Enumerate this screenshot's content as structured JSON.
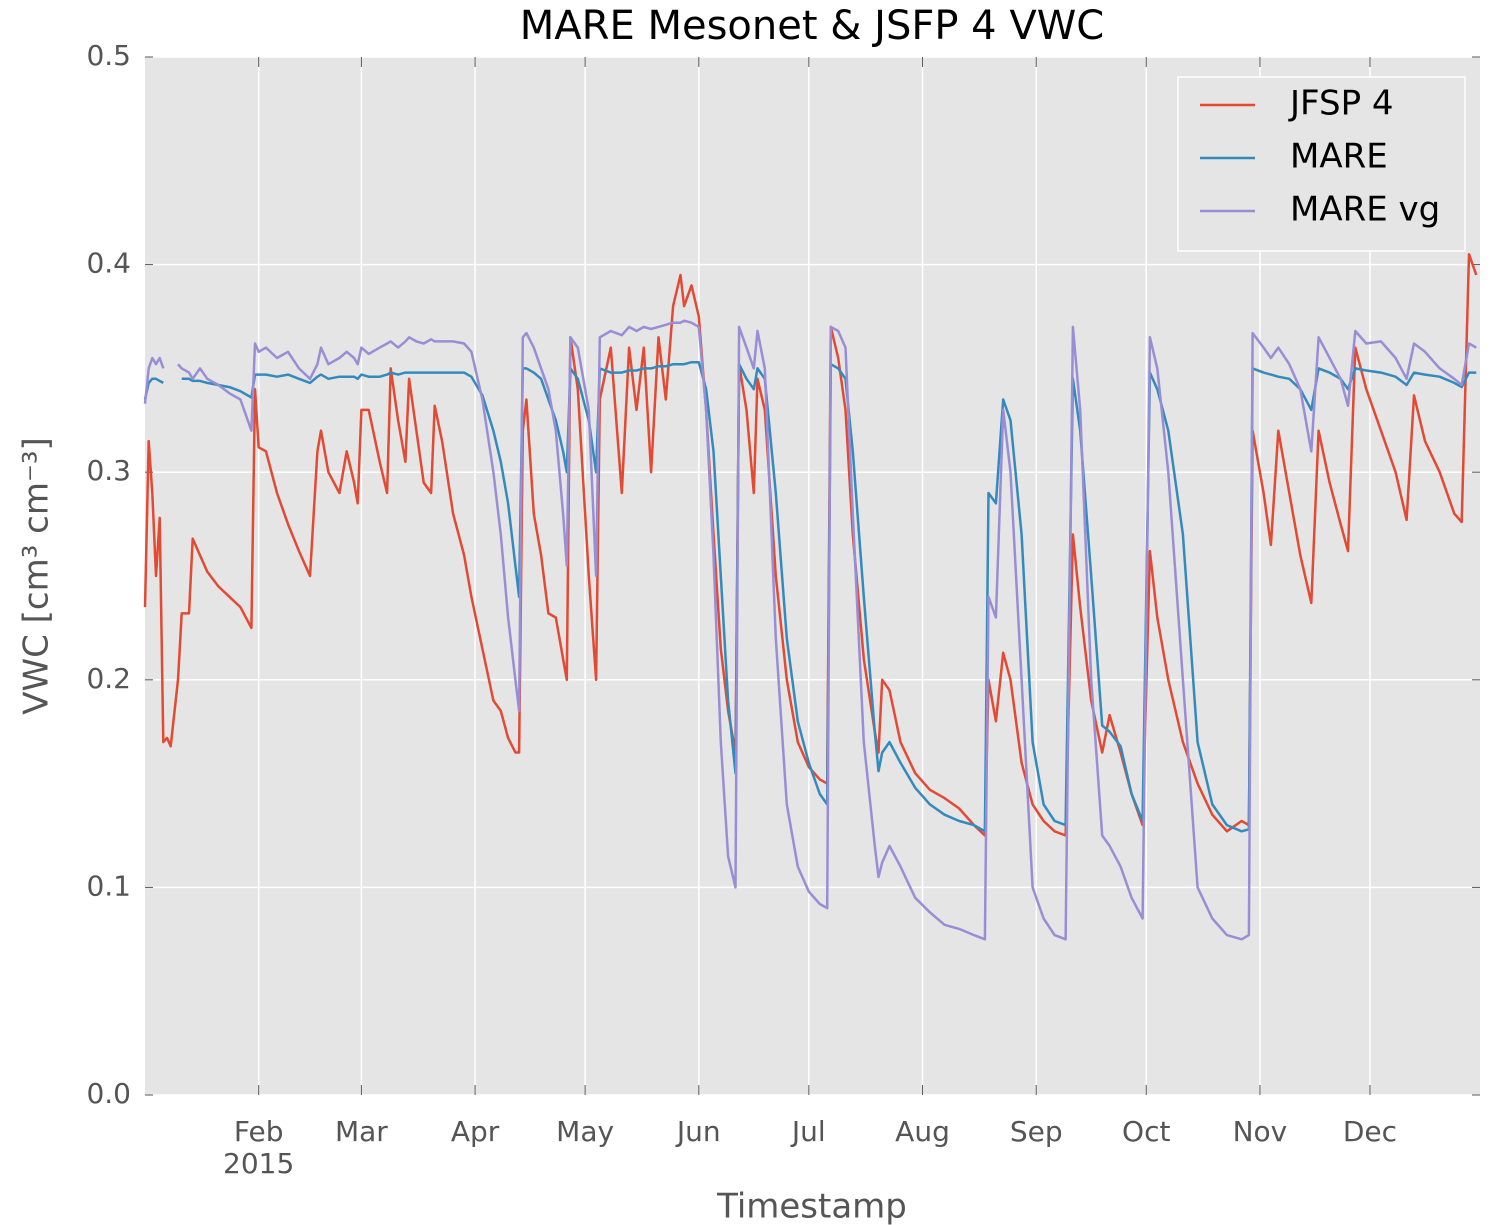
{
  "chart_data": {
    "type": "line",
    "title": "MARE Mesonet & JSFP 4 VWC",
    "x_label": "Timestamp",
    "y_label": "VWC [cm³ cm⁻³]",
    "year_label": "2015",
    "xlim": [
      1,
      365
    ],
    "xticks": [
      {
        "value": 32,
        "label": "Feb"
      },
      {
        "value": 60,
        "label": "Mar"
      },
      {
        "value": 91,
        "label": "Apr"
      },
      {
        "value": 121,
        "label": "May"
      },
      {
        "value": 152,
        "label": "Jun"
      },
      {
        "value": 182,
        "label": "Jul"
      },
      {
        "value": 213,
        "label": "Aug"
      },
      {
        "value": 244,
        "label": "Sep"
      },
      {
        "value": 274,
        "label": "Oct"
      },
      {
        "value": 305,
        "label": "Nov"
      },
      {
        "value": 335,
        "label": "Dec"
      }
    ],
    "ylim": [
      0,
      0.5
    ],
    "yticks": [
      {
        "value": 0,
        "label": "0.0"
      },
      0.1,
      0.2,
      0.3,
      0.4,
      0.5
    ],
    "grid": true,
    "legend": "upper right",
    "x": [
      1,
      2,
      3,
      4,
      5,
      6,
      7,
      8,
      10,
      11,
      13,
      14,
      16,
      18,
      21,
      24,
      27,
      30,
      31,
      32,
      34,
      37,
      40,
      43,
      46,
      48,
      49,
      51,
      54,
      56,
      58,
      59,
      60,
      62,
      65,
      67,
      68,
      70,
      72,
      73,
      75,
      77,
      79,
      80,
      82,
      85,
      88,
      90,
      93,
      96,
      98,
      100,
      102,
      103,
      104,
      105,
      107,
      109,
      111,
      113,
      115,
      116,
      117,
      119,
      122,
      124,
      125,
      128,
      131,
      133,
      135,
      137,
      139,
      141,
      143,
      145,
      147,
      148,
      150,
      152,
      154,
      156,
      158,
      160,
      162,
      163,
      165,
      167,
      168,
      170,
      173,
      176,
      179,
      182,
      185,
      187,
      188,
      190,
      192,
      194,
      197,
      200,
      201,
      202,
      204,
      207,
      211,
      215,
      219,
      223,
      227,
      230,
      231,
      233,
      235,
      237,
      240,
      243,
      246,
      249,
      252,
      254,
      256,
      259,
      262,
      264,
      267,
      270,
      273,
      275,
      277,
      280,
      284,
      288,
      292,
      296,
      300,
      302,
      303,
      306,
      308,
      310,
      313,
      316,
      319,
      321,
      324,
      327,
      329,
      331,
      334,
      338,
      342,
      345,
      347,
      350,
      354,
      358,
      360,
      362,
      364
    ],
    "series": [
      {
        "name": "JFSP 4",
        "color": "#e24a33",
        "values": [
          0.235,
          0.315,
          0.29,
          0.25,
          0.278,
          0.17,
          0.172,
          0.168,
          0.2,
          0.232,
          0.232,
          0.268,
          0.26,
          0.252,
          0.245,
          0.24,
          0.235,
          0.225,
          0.34,
          0.312,
          0.31,
          0.29,
          0.275,
          0.262,
          0.25,
          0.31,
          0.32,
          0.3,
          0.29,
          0.31,
          0.295,
          0.285,
          0.33,
          0.33,
          0.305,
          0.29,
          0.35,
          0.325,
          0.305,
          0.345,
          0.32,
          0.295,
          0.29,
          0.332,
          0.315,
          0.28,
          0.26,
          0.24,
          0.215,
          0.19,
          0.185,
          0.172,
          0.165,
          0.165,
          0.32,
          0.335,
          0.28,
          0.26,
          0.232,
          0.23,
          0.21,
          0.2,
          0.365,
          0.34,
          0.25,
          0.2,
          0.335,
          0.36,
          0.29,
          0.36,
          0.33,
          0.36,
          0.3,
          0.365,
          0.335,
          0.38,
          0.395,
          0.38,
          0.39,
          0.375,
          0.33,
          0.27,
          0.215,
          0.185,
          0.165,
          0.352,
          0.33,
          0.29,
          0.345,
          0.33,
          0.25,
          0.2,
          0.17,
          0.158,
          0.152,
          0.15,
          0.37,
          0.355,
          0.33,
          0.27,
          0.21,
          0.175,
          0.165,
          0.2,
          0.195,
          0.17,
          0.155,
          0.147,
          0.143,
          0.138,
          0.13,
          0.125,
          0.2,
          0.18,
          0.213,
          0.2,
          0.16,
          0.14,
          0.132,
          0.127,
          0.125,
          0.27,
          0.235,
          0.19,
          0.165,
          0.183,
          0.165,
          0.145,
          0.13,
          0.262,
          0.23,
          0.2,
          0.17,
          0.15,
          0.135,
          0.127,
          0.132,
          0.13,
          0.32,
          0.29,
          0.265,
          0.32,
          0.29,
          0.26,
          0.237,
          0.32,
          0.295,
          0.275,
          0.262,
          0.36,
          0.34,
          0.32,
          0.3,
          0.277,
          0.337,
          0.315,
          0.3,
          0.28,
          0.276,
          0.405,
          0.395
        ]
      },
      {
        "name": "MARE",
        "color": "#348abd",
        "values": [
          0.335,
          0.343,
          0.345,
          0.345,
          0.344,
          0.343,
          null,
          null,
          null,
          0.345,
          0.345,
          0.344,
          0.344,
          0.343,
          0.342,
          0.341,
          0.339,
          0.336,
          0.347,
          0.347,
          0.347,
          0.346,
          0.347,
          0.345,
          0.343,
          0.346,
          0.347,
          0.345,
          0.346,
          0.346,
          0.346,
          0.345,
          0.347,
          0.346,
          0.346,
          0.347,
          0.348,
          0.347,
          0.348,
          0.348,
          0.348,
          0.348,
          0.348,
          0.348,
          0.348,
          0.348,
          0.348,
          0.346,
          0.337,
          0.32,
          0.305,
          0.285,
          0.255,
          0.24,
          0.35,
          0.35,
          0.348,
          0.345,
          0.335,
          0.325,
          0.31,
          0.3,
          0.35,
          0.345,
          0.325,
          0.3,
          0.35,
          0.348,
          0.348,
          0.349,
          0.349,
          0.35,
          0.35,
          0.351,
          0.351,
          0.352,
          0.352,
          0.352,
          0.353,
          0.353,
          0.34,
          0.31,
          0.25,
          0.19,
          0.155,
          0.352,
          0.345,
          0.34,
          0.35,
          0.345,
          0.29,
          0.22,
          0.18,
          0.16,
          0.145,
          0.14,
          0.352,
          0.35,
          0.345,
          0.31,
          0.24,
          0.175,
          0.156,
          0.165,
          0.17,
          0.16,
          0.148,
          0.14,
          0.135,
          0.132,
          0.13,
          0.127,
          0.29,
          0.285,
          0.335,
          0.325,
          0.27,
          0.17,
          0.14,
          0.132,
          0.13,
          0.345,
          0.32,
          0.25,
          0.178,
          0.175,
          0.168,
          0.145,
          0.132,
          0.348,
          0.34,
          0.32,
          0.27,
          0.17,
          0.14,
          0.13,
          0.127,
          0.128,
          0.35,
          0.348,
          0.347,
          0.346,
          0.345,
          0.34,
          0.33,
          0.35,
          0.348,
          0.345,
          0.34,
          0.35,
          0.349,
          0.348,
          0.346,
          0.342,
          0.348,
          0.347,
          0.346,
          0.343,
          0.341,
          0.348,
          0.348
        ]
      },
      {
        "name": "MARE vg",
        "color": "#988ed5",
        "values": [
          0.333,
          0.35,
          0.355,
          0.352,
          0.355,
          0.35,
          null,
          null,
          0.352,
          0.35,
          0.348,
          0.345,
          0.35,
          0.345,
          0.342,
          0.338,
          0.335,
          0.32,
          0.362,
          0.358,
          0.36,
          0.355,
          0.358,
          0.35,
          0.345,
          0.352,
          0.36,
          0.352,
          0.355,
          0.358,
          0.355,
          0.352,
          0.36,
          0.357,
          0.36,
          0.362,
          0.363,
          0.36,
          0.363,
          0.365,
          0.363,
          0.362,
          0.364,
          0.363,
          0.363,
          0.363,
          0.362,
          0.358,
          0.335,
          0.3,
          0.27,
          0.23,
          0.2,
          0.185,
          0.365,
          0.367,
          0.36,
          0.35,
          0.34,
          0.32,
          0.28,
          0.255,
          0.365,
          0.36,
          0.33,
          0.25,
          0.365,
          0.368,
          0.366,
          0.37,
          0.368,
          0.37,
          0.369,
          0.37,
          0.371,
          0.372,
          0.372,
          0.373,
          0.372,
          0.37,
          0.33,
          0.26,
          0.17,
          0.115,
          0.1,
          0.37,
          0.36,
          0.35,
          0.368,
          0.35,
          0.22,
          0.14,
          0.11,
          0.098,
          0.092,
          0.09,
          0.37,
          0.368,
          0.36,
          0.28,
          0.17,
          0.12,
          0.105,
          0.112,
          0.12,
          0.11,
          0.095,
          0.088,
          0.082,
          0.08,
          0.077,
          0.075,
          0.24,
          0.23,
          0.33,
          0.3,
          0.2,
          0.1,
          0.085,
          0.077,
          0.075,
          0.37,
          0.33,
          0.2,
          0.125,
          0.12,
          0.11,
          0.095,
          0.085,
          0.365,
          0.35,
          0.3,
          0.2,
          0.1,
          0.085,
          0.077,
          0.075,
          0.077,
          0.367,
          0.36,
          0.355,
          0.36,
          0.352,
          0.34,
          0.31,
          0.365,
          0.355,
          0.345,
          0.332,
          0.368,
          0.362,
          0.363,
          0.355,
          0.345,
          0.362,
          0.358,
          0.35,
          0.345,
          0.342,
          0.362,
          0.36
        ]
      }
    ]
  }
}
